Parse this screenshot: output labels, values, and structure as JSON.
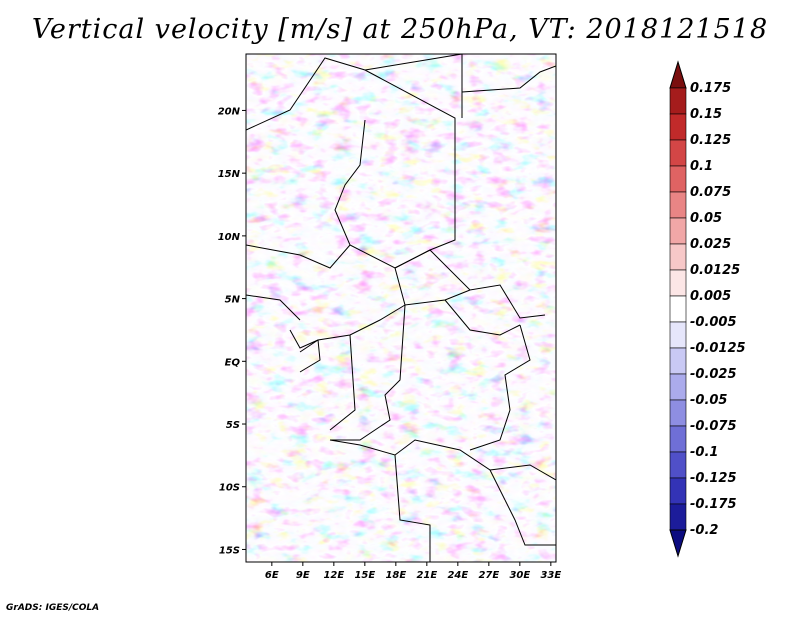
{
  "title": "Vertical velocity [m/s] at 250hPa, VT: 2018121518",
  "credit": "GrADS: IGES/COLA",
  "map": {
    "lat_labels": [
      "20N",
      "15N",
      "10N",
      "5N",
      "EQ",
      "5S",
      "10S",
      "15S"
    ],
    "lon_labels": [
      "6E",
      "9E",
      "12E",
      "15E",
      "18E",
      "21E",
      "24E",
      "27E",
      "30E",
      "33E"
    ],
    "lon_range": [
      3.5,
      33.5
    ],
    "lat_range": [
      -16,
      24.5
    ],
    "lat_values": [
      20,
      15,
      10,
      5,
      0,
      -5,
      -10,
      -15
    ],
    "lon_values": [
      6,
      9,
      12,
      15,
      18,
      21,
      24,
      27,
      30,
      33
    ]
  },
  "colorbar": {
    "labels": [
      "0.175",
      "0.15",
      "0.125",
      "0.1",
      "0.075",
      "0.05",
      "0.025",
      "0.0125",
      "0.005",
      "-0.005",
      "-0.0125",
      "-0.025",
      "-0.05",
      "-0.075",
      "-0.1",
      "-0.125",
      "-0.175",
      "-0.2"
    ],
    "colors": [
      "#7a0f0f",
      "#a51c1c",
      "#c12a2a",
      "#d34646",
      "#df6363",
      "#e98585",
      "#f1a7a7",
      "#f7c8c8",
      "#fce6e6",
      "#ffffff",
      "#e6e6fb",
      "#c9c9f4",
      "#ababec",
      "#8e8ee2",
      "#6f6fd6",
      "#5050c8",
      "#3333b6",
      "#1c1c9a",
      "#0c0c80"
    ]
  },
  "colors": {
    "red": "#d8484a",
    "blue": "#4a4ad0",
    "border": "#000000"
  }
}
